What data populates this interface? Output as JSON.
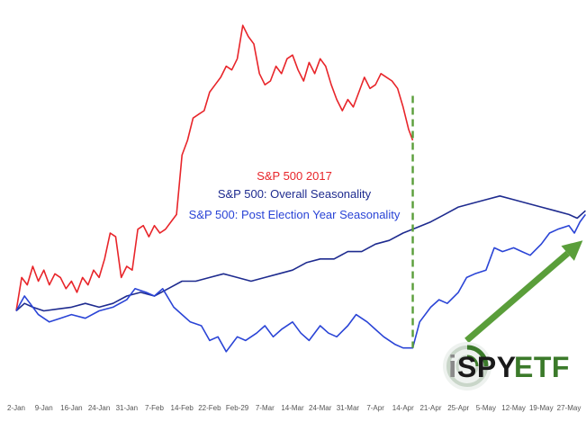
{
  "chart_data": {
    "type": "line",
    "title": "",
    "xlabel": "",
    "ylabel": "",
    "grid": false,
    "x_ticks": [
      "2-Jan",
      "9-Jan",
      "16-Jan",
      "24-Jan",
      "31-Jan",
      "7-Feb",
      "14-Feb",
      "22-Feb",
      "Feb-29",
      "7-Mar",
      "14-Mar",
      "24-Mar",
      "31-Mar",
      "7-Apr",
      "14-Apr",
      "21-Apr",
      "25-Apr",
      "5-May",
      "12-May",
      "19-May",
      "27-May"
    ],
    "y_range": [
      0,
      100
    ],
    "annotation": {
      "type": "vertical-dashed-line",
      "x": 14.35,
      "color": "#5a9e3a"
    },
    "arrow": {
      "from": [
        16.3,
        13
      ],
      "to": [
        20.5,
        40
      ],
      "color": "#5a9e3a"
    },
    "legend": [
      {
        "label": "S&P 500 2017",
        "color": "#e8252a"
      },
      {
        "label": "S&P 500: Overall Seasonality",
        "color": "#1e2b8f"
      },
      {
        "label": "S&P 500: Post Election Year Seasonality",
        "color": "#2a44d6"
      }
    ],
    "series": [
      {
        "name": "S&P 500 2017",
        "color": "#e8252a",
        "points": [
          [
            0,
            21
          ],
          [
            0.2,
            30
          ],
          [
            0.4,
            28
          ],
          [
            0.6,
            33
          ],
          [
            0.8,
            29
          ],
          [
            1.0,
            32
          ],
          [
            1.2,
            28
          ],
          [
            1.4,
            31
          ],
          [
            1.6,
            30
          ],
          [
            1.8,
            27
          ],
          [
            2.0,
            29
          ],
          [
            2.2,
            26
          ],
          [
            2.4,
            30
          ],
          [
            2.6,
            28
          ],
          [
            2.8,
            32
          ],
          [
            3.0,
            30
          ],
          [
            3.2,
            35
          ],
          [
            3.4,
            42
          ],
          [
            3.6,
            41
          ],
          [
            3.8,
            30
          ],
          [
            4.0,
            33
          ],
          [
            4.2,
            32
          ],
          [
            4.4,
            43
          ],
          [
            4.6,
            44
          ],
          [
            4.8,
            41
          ],
          [
            5.0,
            44
          ],
          [
            5.2,
            42
          ],
          [
            5.4,
            43
          ],
          [
            5.6,
            45
          ],
          [
            5.8,
            47
          ],
          [
            6.0,
            63
          ],
          [
            6.2,
            67
          ],
          [
            6.4,
            73
          ],
          [
            6.6,
            74
          ],
          [
            6.8,
            75
          ],
          [
            7.0,
            80
          ],
          [
            7.2,
            82
          ],
          [
            7.4,
            84
          ],
          [
            7.6,
            87
          ],
          [
            7.8,
            86
          ],
          [
            8.0,
            89
          ],
          [
            8.2,
            98
          ],
          [
            8.4,
            95
          ],
          [
            8.6,
            93
          ],
          [
            8.8,
            85
          ],
          [
            9.0,
            82
          ],
          [
            9.2,
            83
          ],
          [
            9.4,
            87
          ],
          [
            9.6,
            85
          ],
          [
            9.8,
            89
          ],
          [
            10.0,
            90
          ],
          [
            10.2,
            86
          ],
          [
            10.4,
            83
          ],
          [
            10.6,
            88
          ],
          [
            10.8,
            85
          ],
          [
            11.0,
            89
          ],
          [
            11.2,
            87
          ],
          [
            11.4,
            82
          ],
          [
            11.6,
            78
          ],
          [
            11.8,
            75
          ],
          [
            12.0,
            78
          ],
          [
            12.2,
            76
          ],
          [
            12.4,
            80
          ],
          [
            12.6,
            84
          ],
          [
            12.8,
            81
          ],
          [
            13.0,
            82
          ],
          [
            13.2,
            85
          ],
          [
            13.4,
            84
          ],
          [
            13.6,
            83
          ],
          [
            13.8,
            81
          ],
          [
            14.0,
            76
          ],
          [
            14.2,
            70
          ],
          [
            14.35,
            67
          ]
        ]
      },
      {
        "name": "S&P 500: Overall Seasonality",
        "color": "#1e2b8f",
        "points": [
          [
            0,
            21
          ],
          [
            0.3,
            23
          ],
          [
            0.6,
            22
          ],
          [
            1,
            21
          ],
          [
            1.5,
            21.5
          ],
          [
            2,
            22
          ],
          [
            2.5,
            23
          ],
          [
            3,
            22
          ],
          [
            3.5,
            23
          ],
          [
            4,
            25
          ],
          [
            4.5,
            26
          ],
          [
            5,
            25
          ],
          [
            5.5,
            27
          ],
          [
            6,
            29
          ],
          [
            6.5,
            29
          ],
          [
            7,
            30
          ],
          [
            7.5,
            31
          ],
          [
            8,
            30
          ],
          [
            8.5,
            29
          ],
          [
            9,
            30
          ],
          [
            9.5,
            31
          ],
          [
            10,
            32
          ],
          [
            10.5,
            34
          ],
          [
            11,
            35
          ],
          [
            11.5,
            35
          ],
          [
            12,
            37
          ],
          [
            12.5,
            37
          ],
          [
            13,
            39
          ],
          [
            13.5,
            40
          ],
          [
            14,
            42
          ],
          [
            14.35,
            43
          ],
          [
            15,
            45
          ],
          [
            15.5,
            47
          ],
          [
            16,
            49
          ],
          [
            16.5,
            50
          ],
          [
            17,
            51
          ],
          [
            17.5,
            52
          ],
          [
            18,
            51
          ],
          [
            18.5,
            50
          ],
          [
            19,
            49
          ],
          [
            19.5,
            48
          ],
          [
            20,
            47
          ],
          [
            20.3,
            46
          ],
          [
            20.6,
            48
          ]
        ]
      },
      {
        "name": "S&P 500: Post Election Year Seasonality",
        "color": "#2a44d6",
        "points": [
          [
            0,
            21
          ],
          [
            0.3,
            25
          ],
          [
            0.5,
            23
          ],
          [
            0.8,
            20
          ],
          [
            1.2,
            18
          ],
          [
            1.6,
            19
          ],
          [
            2,
            20
          ],
          [
            2.5,
            19
          ],
          [
            3,
            21
          ],
          [
            3.5,
            22
          ],
          [
            4,
            24
          ],
          [
            4.3,
            27
          ],
          [
            4.7,
            26
          ],
          [
            5,
            25
          ],
          [
            5.3,
            27
          ],
          [
            5.7,
            22
          ],
          [
            6,
            20
          ],
          [
            6.3,
            18
          ],
          [
            6.7,
            17
          ],
          [
            7,
            13
          ],
          [
            7.3,
            14
          ],
          [
            7.6,
            10
          ],
          [
            8,
            14
          ],
          [
            8.3,
            13
          ],
          [
            8.7,
            15
          ],
          [
            9,
            17
          ],
          [
            9.3,
            14
          ],
          [
            9.6,
            16
          ],
          [
            10,
            18
          ],
          [
            10.3,
            15
          ],
          [
            10.6,
            13
          ],
          [
            11,
            17
          ],
          [
            11.3,
            15
          ],
          [
            11.6,
            14
          ],
          [
            12,
            17
          ],
          [
            12.3,
            20
          ],
          [
            12.7,
            18
          ],
          [
            13,
            16
          ],
          [
            13.3,
            14
          ],
          [
            13.7,
            12
          ],
          [
            14,
            11
          ],
          [
            14.35,
            11
          ],
          [
            14.6,
            18
          ],
          [
            15,
            22
          ],
          [
            15.3,
            24
          ],
          [
            15.6,
            23
          ],
          [
            16,
            26
          ],
          [
            16.3,
            30
          ],
          [
            16.6,
            31
          ],
          [
            17,
            32
          ],
          [
            17.3,
            38
          ],
          [
            17.6,
            37
          ],
          [
            18,
            38
          ],
          [
            18.3,
            37
          ],
          [
            18.6,
            36
          ],
          [
            19,
            39
          ],
          [
            19.3,
            42
          ],
          [
            19.6,
            43
          ],
          [
            20,
            44
          ],
          [
            20.2,
            42
          ],
          [
            20.4,
            45
          ],
          [
            20.6,
            47
          ]
        ]
      }
    ]
  },
  "logo": {
    "text_i": "i",
    "text_spy": "SPY",
    "text_etf": "ETF"
  }
}
